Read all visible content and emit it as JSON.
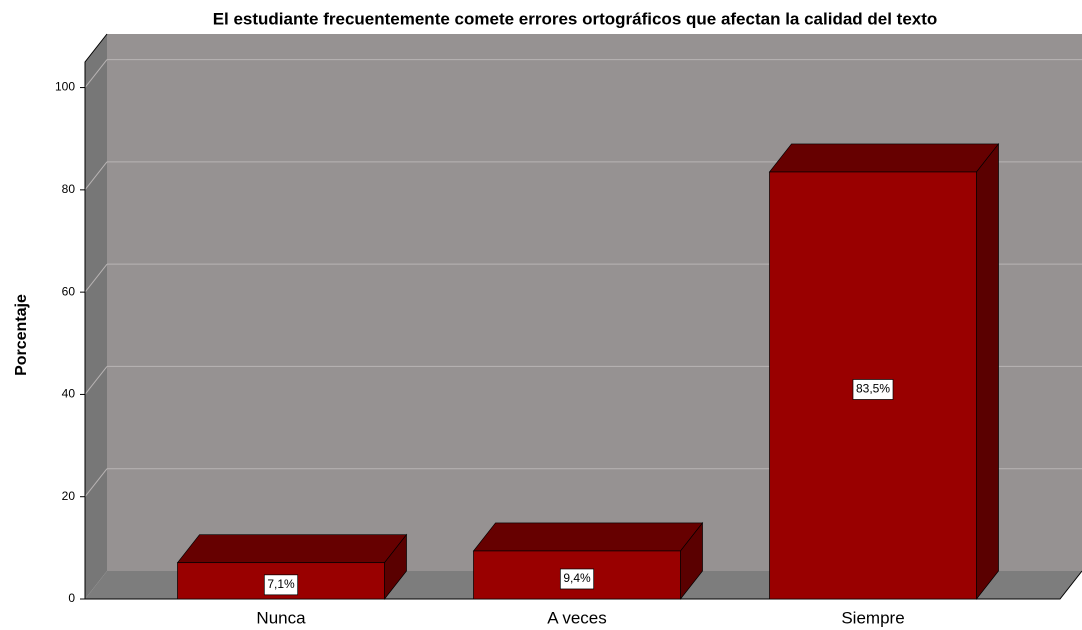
{
  "chart_data": {
    "type": "bar3d",
    "title": "El estudiante frecuentemente comete errores ortográficos que afectan la calidad del texto",
    "y_label": "Porcentaje",
    "categories": [
      "Nunca",
      "A veces",
      "Siempre"
    ],
    "values": [
      7.1,
      9.4,
      83.5
    ],
    "value_labels": [
      "7,1%",
      "9,4%",
      "83,5%"
    ],
    "color": "#990000",
    "ylim": [
      0,
      105
    ],
    "yticks": [
      0,
      20,
      40,
      60,
      80,
      100
    ],
    "grid": true
  }
}
